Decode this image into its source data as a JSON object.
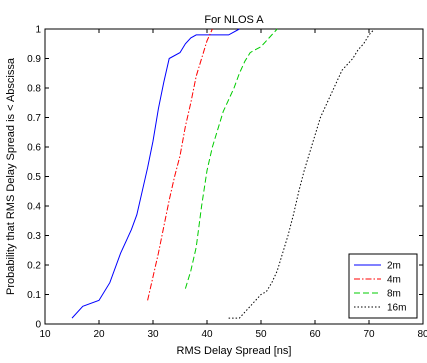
{
  "chart_data": {
    "type": "line",
    "title": "For NLOS A",
    "xlabel": "RMS Delay Spread [ns]",
    "ylabel": "Probability that RMS Delay Spread is < Abscissa",
    "xlim": [
      10,
      80
    ],
    "ylim": [
      0,
      1
    ],
    "xticks": [
      10,
      20,
      30,
      40,
      50,
      60,
      70,
      80
    ],
    "yticks": [
      0,
      0.1,
      0.2,
      0.3,
      0.4,
      0.5,
      0.6,
      0.7,
      0.8,
      0.9,
      1
    ],
    "grid": false,
    "legend_position": "bottom-right",
    "series": [
      {
        "name": "2m",
        "color": "#0000ff",
        "dash": "solid",
        "x": [
          15,
          17,
          20,
          22,
          24,
          26,
          27,
          28,
          29,
          30,
          31,
          32,
          33,
          35,
          36,
          37,
          38,
          39,
          40,
          42,
          44,
          46
        ],
        "y": [
          0.02,
          0.06,
          0.08,
          0.14,
          0.24,
          0.32,
          0.37,
          0.45,
          0.53,
          0.62,
          0.73,
          0.82,
          0.9,
          0.92,
          0.95,
          0.97,
          0.98,
          0.98,
          0.98,
          0.98,
          0.98,
          1.0
        ]
      },
      {
        "name": "4m",
        "color": "#ff0000",
        "dash": "dashdot",
        "x": [
          29,
          30,
          31,
          32,
          33,
          34,
          35,
          36,
          37,
          38,
          39,
          40,
          41
        ],
        "y": [
          0.08,
          0.16,
          0.24,
          0.33,
          0.42,
          0.5,
          0.57,
          0.67,
          0.75,
          0.84,
          0.9,
          0.96,
          1.0
        ]
      },
      {
        "name": "8m",
        "color": "#00cc00",
        "dash": "dash",
        "x": [
          36,
          37,
          38,
          39,
          40,
          41,
          42,
          43,
          44,
          45,
          46,
          47,
          48,
          49,
          50,
          51,
          52,
          53
        ],
        "y": [
          0.12,
          0.18,
          0.26,
          0.4,
          0.52,
          0.6,
          0.66,
          0.72,
          0.76,
          0.8,
          0.85,
          0.89,
          0.92,
          0.93,
          0.94,
          0.96,
          0.98,
          1.0
        ]
      },
      {
        "name": "16m",
        "color": "#000000",
        "dash": "dot",
        "x": [
          44,
          46,
          47,
          48,
          49,
          50,
          51,
          52,
          53,
          54,
          55,
          56,
          57,
          58,
          59,
          60,
          61,
          62,
          63,
          64,
          65,
          66,
          67,
          68,
          69,
          70,
          71
        ],
        "y": [
          0.02,
          0.02,
          0.04,
          0.06,
          0.08,
          0.1,
          0.11,
          0.14,
          0.18,
          0.24,
          0.3,
          0.37,
          0.45,
          0.52,
          0.58,
          0.64,
          0.7,
          0.74,
          0.78,
          0.82,
          0.86,
          0.88,
          0.9,
          0.93,
          0.95,
          0.98,
          1.0
        ]
      }
    ]
  }
}
